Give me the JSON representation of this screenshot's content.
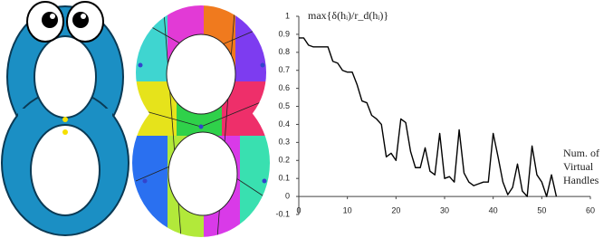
{
  "chart_data": {
    "type": "line",
    "title": "max{δ(hᵢ)/r_d(hᵢ)}",
    "annotation": [
      "Num. of",
      "Virtual",
      "Handles"
    ],
    "x": [
      0,
      1,
      2,
      3,
      4,
      5,
      6,
      7,
      8,
      9,
      10,
      11,
      12,
      13,
      14,
      15,
      16,
      17,
      18,
      19,
      20,
      21,
      22,
      23,
      24,
      25,
      26,
      27,
      28,
      29,
      30,
      31,
      32,
      33,
      34,
      35,
      36,
      37,
      38,
      39,
      40,
      41,
      42,
      43,
      44,
      45,
      46,
      47,
      48,
      49,
      50,
      51,
      52,
      53
    ],
    "values": [
      0.88,
      0.88,
      0.84,
      0.83,
      0.83,
      0.83,
      0.83,
      0.75,
      0.74,
      0.7,
      0.69,
      0.69,
      0.62,
      0.53,
      0.52,
      0.45,
      0.43,
      0.4,
      0.22,
      0.24,
      0.2,
      0.43,
      0.41,
      0.25,
      0.16,
      0.16,
      0.27,
      0.14,
      0.12,
      0.35,
      0.1,
      0.11,
      0.08,
      0.37,
      0.13,
      0.08,
      0.06,
      0.07,
      0.08,
      0.08,
      0.35,
      0.22,
      0.08,
      0.01,
      0.05,
      0.18,
      0.03,
      0.0,
      0.28,
      0.12,
      0.08,
      0.0,
      0.12,
      0.0
    ],
    "color": "#000000",
    "xlim": [
      0,
      60
    ],
    "xticks": [
      0,
      10,
      20,
      30,
      40,
      50,
      60
    ],
    "ylim": [
      -0.1,
      1
    ],
    "yticks": [
      -0.1,
      0,
      0.1,
      0.2,
      0.3,
      0.4,
      0.5,
      0.6,
      0.7,
      0.8,
      0.9,
      1
    ],
    "grid": false
  }
}
